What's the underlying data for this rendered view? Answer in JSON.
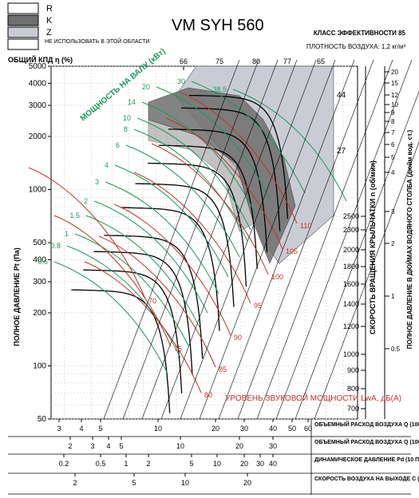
{
  "chart_data": {
    "type": "line",
    "title": "VM SYH 560",
    "efficiency_class": "КЛАСС ЭФФЕКТИВНОСТИ 85",
    "air_density": "ПЛОТНОСТЬ ВОЗДУХА: 1,2 кг/м³",
    "legend": [
      {
        "label": "R",
        "color": "#ffffff"
      },
      {
        "label": "K",
        "color": "#6f6f6f"
      },
      {
        "label": "Z",
        "color": "#c9cdd3"
      },
      {
        "label": "НЕ ИСПОЛЬЗОВАТЬ В ЭТОЙ ОБЛАСТИ",
        "color": "#ffffff"
      }
    ],
    "efficiency_axis_label": "ОБЩИЙ КПД η (%)",
    "efficiency_ticks": [
      "66",
      "75",
      "80",
      "77",
      "65"
    ],
    "ylabel_left": "ПОЛНОЕ ДАВЛЕНИЕ Pt (Па)",
    "y_ticks_left": [
      "5000",
      "4000",
      "3000",
      "2000",
      "1000",
      "500",
      "400",
      "300",
      "200",
      "100",
      "50"
    ],
    "ylim": [
      50,
      5000
    ],
    "ylabel_rpm": "СКОРОСТЬ ВРАЩЕНИЯ КРЫЛЬЧАТКИ n (об/мин)",
    "rpm_ticks": [
      "2500",
      "2300",
      "2000",
      "1800",
      "1600",
      "1400",
      "1200",
      "1000",
      "900",
      "800",
      "700"
    ],
    "ylabel_right": "ПОЛНОЕ ДАВЛЕНИЕ В ДЮЙМАХ ВОДЯНОГО СТОЛБА (дюйм вод. ст.)",
    "y_ticks_right": [
      "20",
      "15",
      "12",
      "10",
      "9",
      "8",
      "7",
      "6",
      "5",
      "4",
      "3",
      "2",
      "1",
      "0.5"
    ],
    "x_axes": [
      {
        "label": "ОБЪЕМНЫЙ РАСХОД ВОЗДУХА Q (1000 м³/ч)",
        "ticks": [
          "3",
          "4",
          "5",
          "10",
          "20",
          "30",
          "40",
          "50",
          "60"
        ]
      },
      {
        "label": "ОБЪЕМНЫЙ РАСХОД ВОЗДУХА Q (1000 куб.фут/мин)",
        "ticks": [
          "2",
          "3",
          "4",
          "5",
          "10",
          "20",
          "30"
        ]
      },
      {
        "label": "ДИНАМИЧЕСКОЕ ДАВЛЕНИЕ Pd (10 Па)",
        "ticks": [
          "0.2",
          "0.5",
          "1",
          "2",
          "5",
          "10",
          "20",
          "30",
          "40"
        ]
      },
      {
        "label": "СКОРОСТЬ ВОЗДУХА НА ВЫХОДЕ С (м/с)",
        "ticks": [
          "2",
          "5",
          "10",
          "20"
        ]
      }
    ],
    "power_label": "МОЩНОСТЬ НА ВАЛУ (кВт)",
    "power_values": [
      "0.6",
      "0.8",
      "1",
      "1.5",
      "2",
      "3",
      "4",
      "6",
      "8",
      "10",
      "14",
      "20",
      "30",
      "38.5"
    ],
    "power_color": "#1a9a5a",
    "noise_label": "УРОВЕНЬ ЗВУКОВОЙ МОЩНОСТИ LwA, дБ(A)",
    "noise_values": [
      "70",
      "75",
      "80",
      "85",
      "90",
      "95",
      "100",
      "105",
      "110"
    ],
    "noise_color": "#c8302c",
    "blade_angles": [
      "27",
      "44"
    ],
    "speed_curves_rpm": [
      700,
      800,
      900,
      1000,
      1200,
      1400,
      1600,
      1800,
      2000,
      2300,
      2500
    ],
    "curve_flow_at_max_m3h_1000": [
      9.5,
      10.8,
      12.1,
      13.5,
      16.2,
      18.9,
      21.6,
      24.3,
      27,
      31,
      33.7
    ],
    "curve_pressure_at_max_pa": [
      270,
      350,
      445,
      550,
      790,
      1080,
      1410,
      1780,
      2200,
      2900,
      3420
    ]
  }
}
